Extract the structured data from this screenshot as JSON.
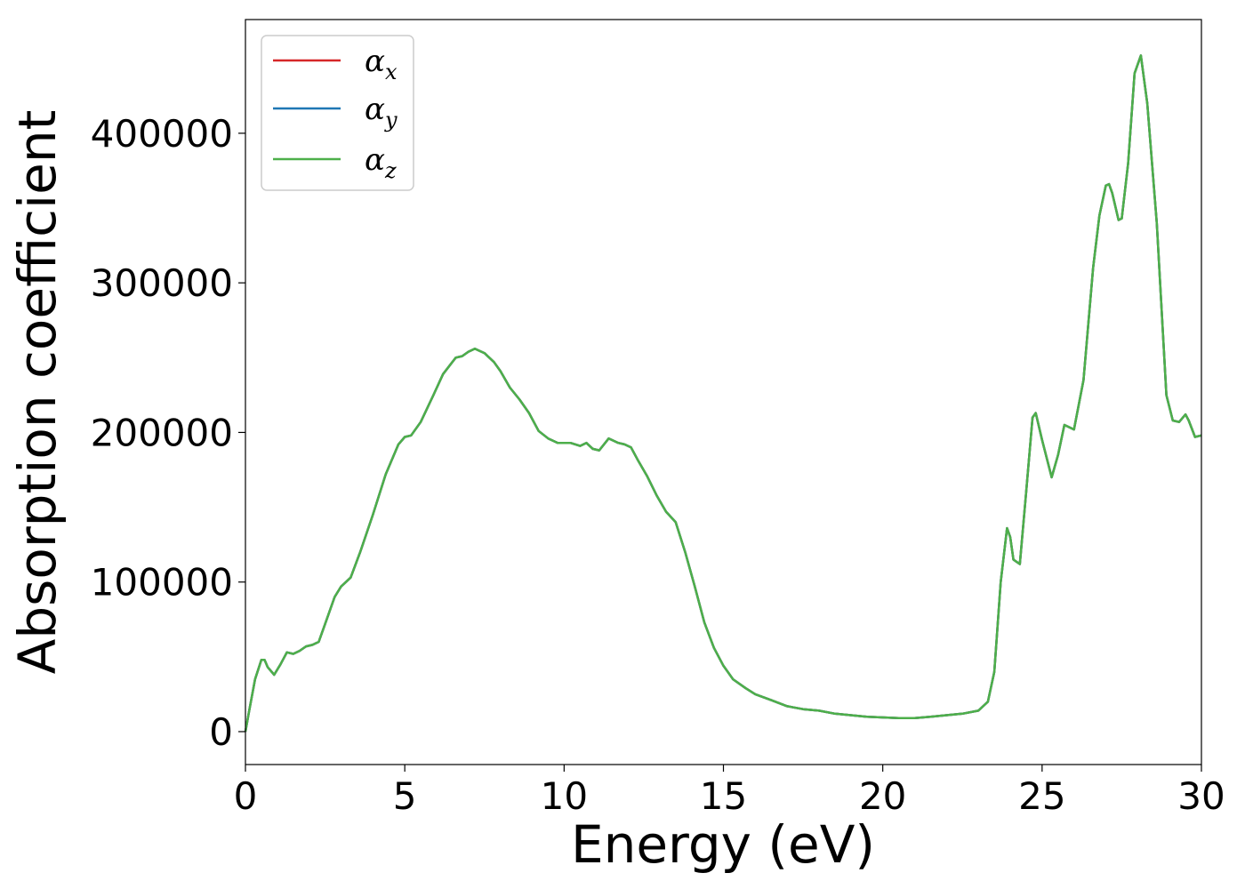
{
  "chart_data": {
    "type": "line",
    "title": "",
    "xlabel": "Energy (eV)",
    "ylabel": "Absorption coefficient",
    "xlim": [
      0,
      30
    ],
    "ylim": [
      -22000,
      476000
    ],
    "xticks": [
      0,
      5,
      10,
      15,
      20,
      25,
      30
    ],
    "yticks": [
      0,
      100000,
      200000,
      300000,
      400000
    ],
    "grid": false,
    "legend_position": "top-left",
    "series": [
      {
        "name": "α",
        "subscript": "x",
        "color": "#d62728"
      },
      {
        "name": "α",
        "subscript": "y",
        "color": "#1f77b4"
      },
      {
        "name": "α",
        "subscript": "z",
        "color": "#4daf4a"
      }
    ],
    "x": [
      0,
      0.1,
      0.3,
      0.5,
      0.6,
      0.7,
      0.9,
      1.1,
      1.3,
      1.5,
      1.7,
      1.9,
      2.1,
      2.3,
      2.5,
      2.8,
      3.0,
      3.3,
      3.6,
      4.0,
      4.4,
      4.8,
      5.0,
      5.2,
      5.5,
      5.9,
      6.2,
      6.6,
      6.8,
      7.0,
      7.2,
      7.5,
      7.8,
      8.0,
      8.3,
      8.6,
      8.9,
      9.2,
      9.5,
      9.8,
      10.2,
      10.5,
      10.7,
      10.9,
      11.1,
      11.4,
      11.7,
      11.9,
      12.1,
      12.3,
      12.6,
      12.9,
      13.2,
      13.5,
      13.8,
      14.1,
      14.4,
      14.7,
      15.0,
      15.3,
      15.7,
      16.0,
      16.5,
      17.0,
      17.5,
      18.0,
      18.5,
      19.0,
      19.5,
      20.0,
      20.5,
      21.0,
      21.5,
      22.0,
      22.5,
      23.0,
      23.3,
      23.5,
      23.7,
      23.9,
      24.0,
      24.1,
      24.3,
      24.5,
      24.7,
      24.8,
      25.0,
      25.3,
      25.5,
      25.7,
      26.0,
      26.3,
      26.6,
      26.8,
      27.0,
      27.1,
      27.2,
      27.4,
      27.5,
      27.7,
      27.9,
      28.1,
      28.3,
      28.6,
      28.9,
      29.1,
      29.3,
      29.5,
      29.6,
      29.8,
      30.0
    ],
    "y": [
      0,
      12000,
      35000,
      48000,
      48000,
      43000,
      38000,
      45000,
      53000,
      52000,
      54000,
      57000,
      58000,
      60000,
      72000,
      90000,
      97000,
      103000,
      120000,
      145000,
      172000,
      192000,
      197000,
      198000,
      207000,
      225000,
      239000,
      250000,
      251000,
      254000,
      256000,
      253000,
      247000,
      241000,
      230000,
      222000,
      213000,
      201000,
      196000,
      193000,
      193000,
      191000,
      193000,
      189000,
      188000,
      196000,
      193000,
      192000,
      190000,
      182000,
      171000,
      158000,
      147000,
      140000,
      120000,
      97000,
      73000,
      56000,
      44000,
      35000,
      29000,
      25000,
      21000,
      17000,
      15000,
      14000,
      12000,
      11000,
      10000,
      9500,
      9000,
      9000,
      10000,
      11000,
      12000,
      14000,
      20000,
      40000,
      100000,
      136000,
      130000,
      115000,
      112000,
      160000,
      210000,
      213000,
      195000,
      170000,
      185000,
      205000,
      202000,
      235000,
      310000,
      345000,
      365000,
      366000,
      360000,
      342000,
      343000,
      380000,
      440000,
      452000,
      420000,
      340000,
      225000,
      208000,
      207000,
      212000,
      208000,
      197000,
      198000
    ]
  }
}
